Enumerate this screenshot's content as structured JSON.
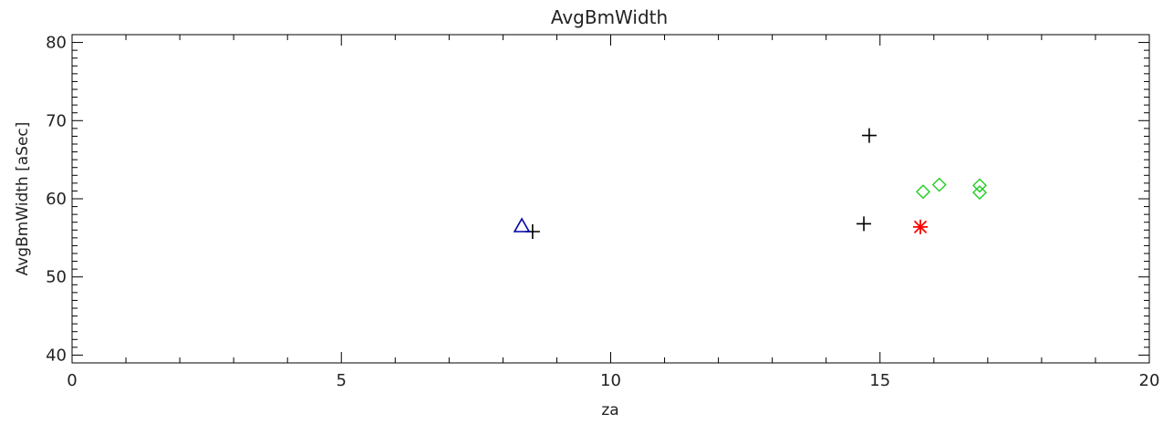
{
  "chart_data": {
    "type": "scatter",
    "title": "AvgBmWidth",
    "xlabel": "za",
    "ylabel": "AvgBmWidth  [aSec]",
    "xlim": [
      0,
      20
    ],
    "ylim": [
      39,
      81
    ],
    "x_ticks": [
      0,
      5,
      10,
      15,
      20
    ],
    "y_ticks": [
      40,
      50,
      60,
      70,
      80
    ],
    "x_minor_step": 1,
    "y_minor_step": 1,
    "grid": false,
    "series": [
      {
        "marker": "plus",
        "color": "#000000",
        "points": [
          {
            "x": 8.55,
            "y": 55.8
          },
          {
            "x": 14.7,
            "y": 56.8
          },
          {
            "x": 14.8,
            "y": 68.1
          }
        ]
      },
      {
        "marker": "triangle",
        "color": "#0000aa",
        "points": [
          {
            "x": 8.35,
            "y": 56.5
          }
        ]
      },
      {
        "marker": "diamond",
        "color": "#22cc22",
        "points": [
          {
            "x": 15.8,
            "y": 60.9
          },
          {
            "x": 16.1,
            "y": 61.8
          },
          {
            "x": 16.85,
            "y": 61.7
          },
          {
            "x": 16.85,
            "y": 60.8
          }
        ]
      },
      {
        "marker": "asterisk",
        "color": "#ff0000",
        "points": [
          {
            "x": 15.75,
            "y": 56.4
          }
        ]
      }
    ]
  }
}
